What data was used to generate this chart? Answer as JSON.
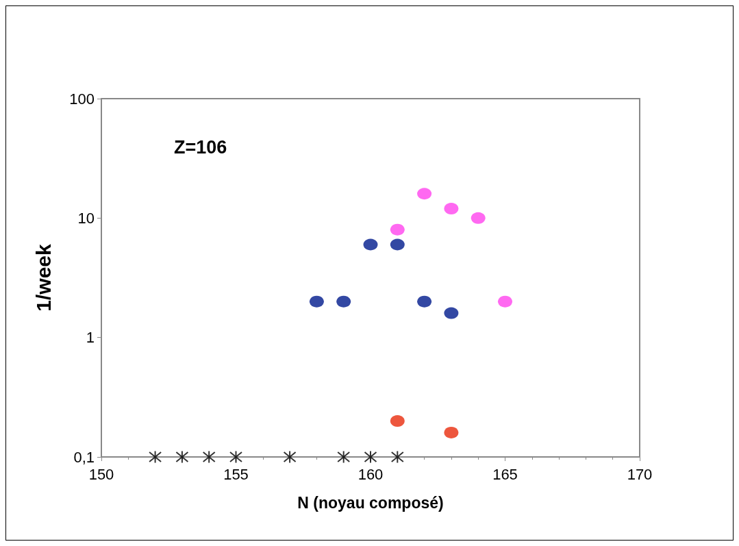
{
  "chart_data": {
    "type": "scatter",
    "xlabel": "N (noyau composé)",
    "ylabel": "1/week",
    "annotations": [
      "Z=106"
    ],
    "xlim": [
      150,
      170
    ],
    "xticks": [
      150,
      155,
      160,
      165,
      170
    ],
    "ylim": [
      0.1,
      100
    ],
    "yticks": [
      {
        "value": 0.1,
        "label": "0,1"
      },
      1,
      10,
      100
    ],
    "log": "y",
    "grid": false,
    "series": [
      {
        "color": "#ff44ee",
        "marker": "circle",
        "x": [
          161,
          162,
          163,
          164,
          165
        ],
        "values": [
          8,
          16,
          12,
          10,
          2
        ]
      },
      {
        "color": "#001a8c",
        "marker": "circle",
        "x": [
          158,
          159,
          160,
          161,
          162,
          163
        ],
        "values": [
          2,
          2,
          6,
          6,
          2,
          1.6
        ]
      },
      {
        "color": "#e82c0c",
        "marker": "circle",
        "x": [
          161,
          163
        ],
        "values": [
          0.2,
          0.16
        ]
      },
      {
        "color": "#000000",
        "marker": "cross",
        "x": [
          152,
          153,
          154,
          155,
          157,
          159,
          160,
          161
        ],
        "values": [
          0.1,
          0.1,
          0.1,
          0.1,
          0.1,
          0.1,
          0.1,
          0.1
        ]
      }
    ]
  }
}
